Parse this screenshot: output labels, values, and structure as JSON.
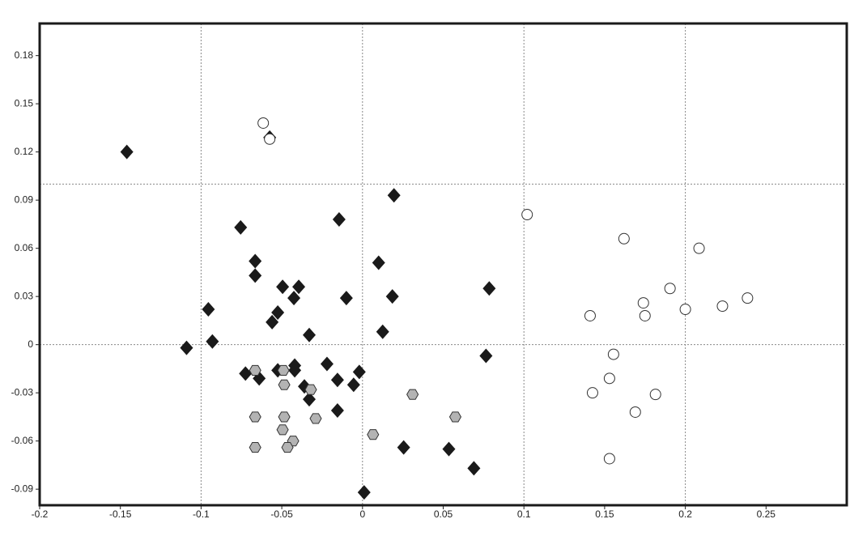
{
  "chart_data": {
    "type": "scatter",
    "xlim": [
      -0.2,
      0.3
    ],
    "ylim": [
      -0.1,
      0.2
    ],
    "xticks": [
      -0.2,
      -0.15,
      -0.1,
      -0.05,
      0,
      0.05,
      0.1,
      0.15,
      0.2,
      0.25
    ],
    "yticks": [
      -0.09,
      -0.06,
      -0.03,
      0,
      0.03,
      0.06,
      0.09,
      0.12,
      0.15,
      0.18
    ],
    "xgrid": [
      -0.1,
      0,
      0.1,
      0.2
    ],
    "ygrid": [
      0,
      0.1
    ],
    "series": [
      {
        "marker": "diamond",
        "color": "#1a1a1a",
        "x": [
          -0.146,
          -0.0575,
          -0.0755,
          -0.0145,
          0.0195,
          -0.0665,
          -0.0665,
          0.01,
          -0.0495,
          -0.0395,
          0.0785,
          -0.0955,
          -0.0425,
          -0.01,
          0.0185,
          -0.0525,
          -0.056,
          -0.033,
          0.0125,
          -0.093,
          -0.109,
          0.0765,
          -0.0725,
          -0.064,
          -0.0525,
          -0.042,
          -0.042,
          -0.022,
          -0.002,
          -0.0155,
          -0.0055,
          -0.036,
          -0.033,
          -0.0155,
          0.0255,
          0.0535,
          0.069,
          0.001
        ],
        "y": [
          0.12,
          0.129,
          0.073,
          0.078,
          0.093,
          0.052,
          0.043,
          0.051,
          0.036,
          0.036,
          0.035,
          0.022,
          0.029,
          0.029,
          0.03,
          0.02,
          0.014,
          0.006,
          0.008,
          0.002,
          -0.002,
          -0.007,
          -0.018,
          -0.021,
          -0.016,
          -0.013,
          -0.016,
          -0.012,
          -0.017,
          -0.022,
          -0.025,
          -0.026,
          -0.034,
          -0.041,
          -0.064,
          -0.065,
          -0.077,
          -0.092
        ]
      },
      {
        "marker": "circle",
        "color": "#ffffff",
        "x": [
          -0.0615,
          -0.0575,
          0.102,
          0.162,
          0.2085,
          0.1905,
          0.174,
          0.175,
          0.141,
          0.2,
          0.223,
          0.2385,
          0.1555,
          0.153,
          0.1425,
          0.1815,
          0.169,
          0.153
        ],
        "y": [
          0.138,
          0.128,
          0.081,
          0.066,
          0.06,
          0.035,
          0.026,
          0.018,
          0.018,
          0.022,
          0.024,
          0.029,
          -0.006,
          -0.021,
          -0.03,
          -0.031,
          -0.042,
          -0.071
        ]
      },
      {
        "marker": "hexagon",
        "color": "#b3b3b3",
        "x": [
          -0.0665,
          -0.049,
          -0.0485,
          -0.032,
          0.031,
          -0.0665,
          -0.0485,
          0.0575,
          -0.029,
          -0.0495,
          0.0065,
          -0.043,
          -0.0465,
          -0.0665
        ],
        "y": [
          -0.016,
          -0.016,
          -0.025,
          -0.028,
          -0.031,
          -0.045,
          -0.045,
          -0.045,
          -0.046,
          -0.053,
          -0.056,
          -0.06,
          -0.064,
          -0.064
        ]
      }
    ]
  }
}
